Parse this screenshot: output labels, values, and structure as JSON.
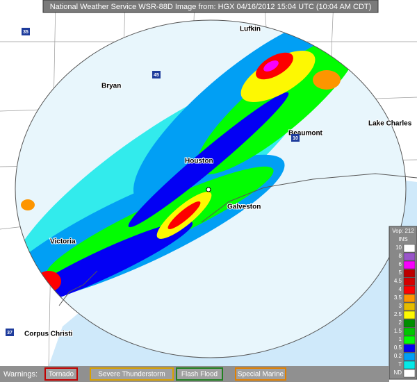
{
  "header": {
    "title": "National Weather Service WSR-88D Image from: HGX 04/16/2012 15:04 UTC (10:04 AM CDT)"
  },
  "map": {
    "cities": [
      "Lufkin",
      "Bryan",
      "Houston",
      "Beaumont",
      "Lake Charles",
      "Galveston",
      "Victoria",
      "Corpus Christi"
    ],
    "highways": [
      "35",
      "45",
      "10",
      "37"
    ]
  },
  "legend": {
    "title": "Vop: 212",
    "unit": "INS",
    "items": [
      {
        "label": "10",
        "color": "#ffffff"
      },
      {
        "label": "8",
        "color": "#9955c9"
      },
      {
        "label": "6",
        "color": "#f800fd"
      },
      {
        "label": "5",
        "color": "#bc0000"
      },
      {
        "label": "4.5",
        "color": "#d40000"
      },
      {
        "label": "4",
        "color": "#fd0000"
      },
      {
        "label": "3.5",
        "color": "#fd9500"
      },
      {
        "label": "3",
        "color": "#e5bc00"
      },
      {
        "label": "2.5",
        "color": "#fdf802"
      },
      {
        "label": "2",
        "color": "#008e00"
      },
      {
        "label": "1.5",
        "color": "#01c501"
      },
      {
        "label": "1",
        "color": "#02fd02"
      },
      {
        "label": "0.5",
        "color": "#0300f4"
      },
      {
        "label": "0.2",
        "color": "#019ff4"
      },
      {
        "label": "T",
        "color": "#04e9e7"
      },
      {
        "label": "ND",
        "color": "#ffffff"
      }
    ]
  },
  "warnings": {
    "label": "Warnings:",
    "items": [
      {
        "label": "Tornado",
        "color": "#c00000"
      },
      {
        "label": "Severe Thunderstorm",
        "color": "#d8a000"
      },
      {
        "label": "Flash Flood",
        "color": "#208020"
      },
      {
        "label": "Special Marine",
        "color": "#e08000"
      }
    ]
  }
}
